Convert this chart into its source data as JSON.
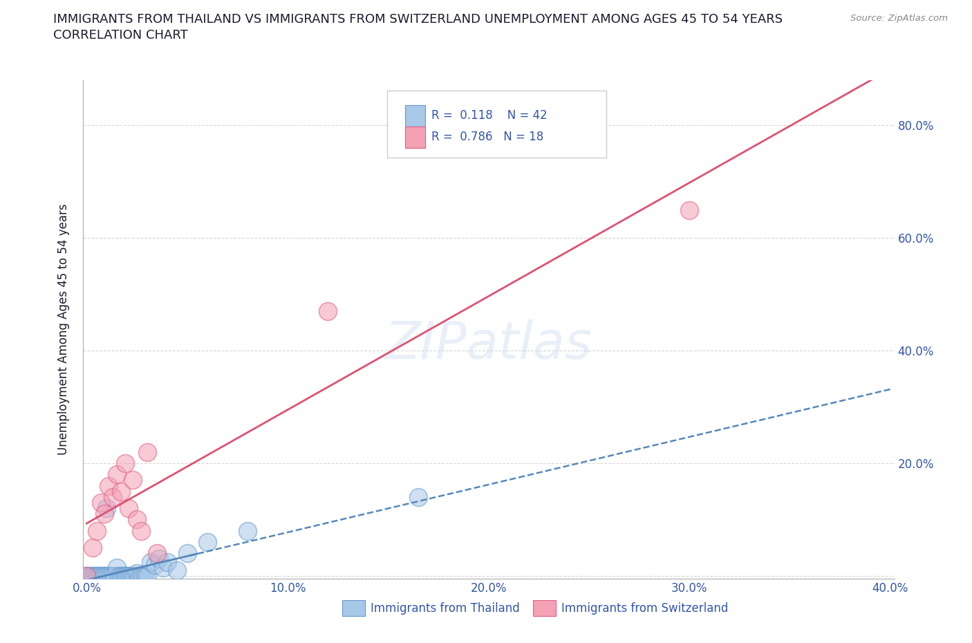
{
  "title_line1": "IMMIGRANTS FROM THAILAND VS IMMIGRANTS FROM SWITZERLAND UNEMPLOYMENT AMONG AGES 45 TO 54 YEARS",
  "title_line2": "CORRELATION CHART",
  "source_text": "Source: ZipAtlas.com",
  "ylabel": "Unemployment Among Ages 45 to 54 years",
  "watermark": "ZIPatlas",
  "xlim": [
    -0.002,
    0.402
  ],
  "ylim": [
    -0.005,
    0.88
  ],
  "thailand_R": 0.118,
  "thailand_N": 42,
  "switzerland_R": 0.786,
  "switzerland_N": 18,
  "thailand_color": "#a8c8e8",
  "switzerland_color": "#f4a0b5",
  "thailand_edge_color": "#6699cc",
  "switzerland_edge_color": "#e06080",
  "thailand_trend_color": "#5588bb",
  "switzerland_trend_color": "#e05070",
  "axis_color": "#3355aa",
  "grid_color": "#cccccc",
  "background_color": "#ffffff",
  "title_color": "#1a1a2e",
  "thailand_x": [
    0.0,
    0.001,
    0.002,
    0.003,
    0.004,
    0.005,
    0.006,
    0.007,
    0.008,
    0.009,
    0.01,
    0.011,
    0.012,
    0.013,
    0.014,
    0.015,
    0.016,
    0.017,
    0.018,
    0.019,
    0.02,
    0.021,
    0.022,
    0.023,
    0.024,
    0.025,
    0.026,
    0.027,
    0.028,
    0.029,
    0.03,
    0.032,
    0.034,
    0.036,
    0.038,
    0.04,
    0.045,
    0.05,
    0.06,
    0.08,
    0.165,
    0.01
  ],
  "thailand_y": [
    0.0,
    0.0,
    0.0,
    0.0,
    0.0,
    0.0,
    0.0,
    0.0,
    0.0,
    0.0,
    0.0,
    0.0,
    0.0,
    0.0,
    0.0,
    0.015,
    0.0,
    0.0,
    0.0,
    0.0,
    0.0,
    0.0,
    0.0,
    0.0,
    0.0,
    0.005,
    0.0,
    0.0,
    0.0,
    0.0,
    0.0,
    0.025,
    0.02,
    0.03,
    0.015,
    0.025,
    0.01,
    0.04,
    0.06,
    0.08,
    0.14,
    0.12
  ],
  "switzerland_x": [
    0.0,
    0.003,
    0.005,
    0.007,
    0.009,
    0.011,
    0.013,
    0.015,
    0.017,
    0.019,
    0.021,
    0.023,
    0.025,
    0.027,
    0.03,
    0.035,
    0.12,
    0.3
  ],
  "switzerland_y": [
    0.0,
    0.05,
    0.08,
    0.13,
    0.11,
    0.16,
    0.14,
    0.18,
    0.15,
    0.2,
    0.12,
    0.17,
    0.1,
    0.08,
    0.22,
    0.04,
    0.47,
    0.65
  ]
}
